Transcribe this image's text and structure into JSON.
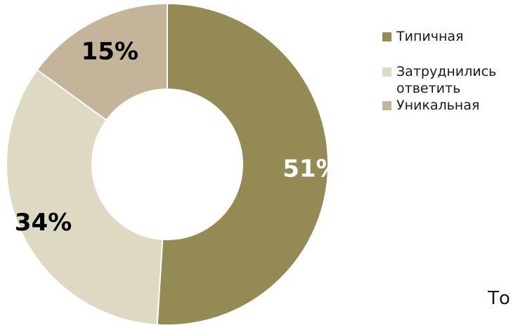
{
  "chart_data": {
    "type": "pie",
    "title": "",
    "slices": [
      {
        "label": "Типичная",
        "value": 51,
        "display": "51%",
        "color": "#948a54",
        "label_color": "#ffffff"
      },
      {
        "label": "Затруднились ответить",
        "value": 34,
        "display": "34%",
        "color": "#ddd9c3",
        "label_color": "#000000"
      },
      {
        "label": "Уникальная",
        "value": 15,
        "display": "15%",
        "color": "#c4b59a",
        "label_color": "#000000"
      }
    ],
    "donut": true,
    "legend": "right"
  },
  "legend": {
    "items": [
      {
        "label": "Типичная",
        "color": "#948a54"
      },
      {
        "label": "Затруднились ответить",
        "color": "#ddd9c3"
      },
      {
        "label": "Уникальная",
        "color": "#c4b59a"
      }
    ]
  },
  "corner_text": "То"
}
